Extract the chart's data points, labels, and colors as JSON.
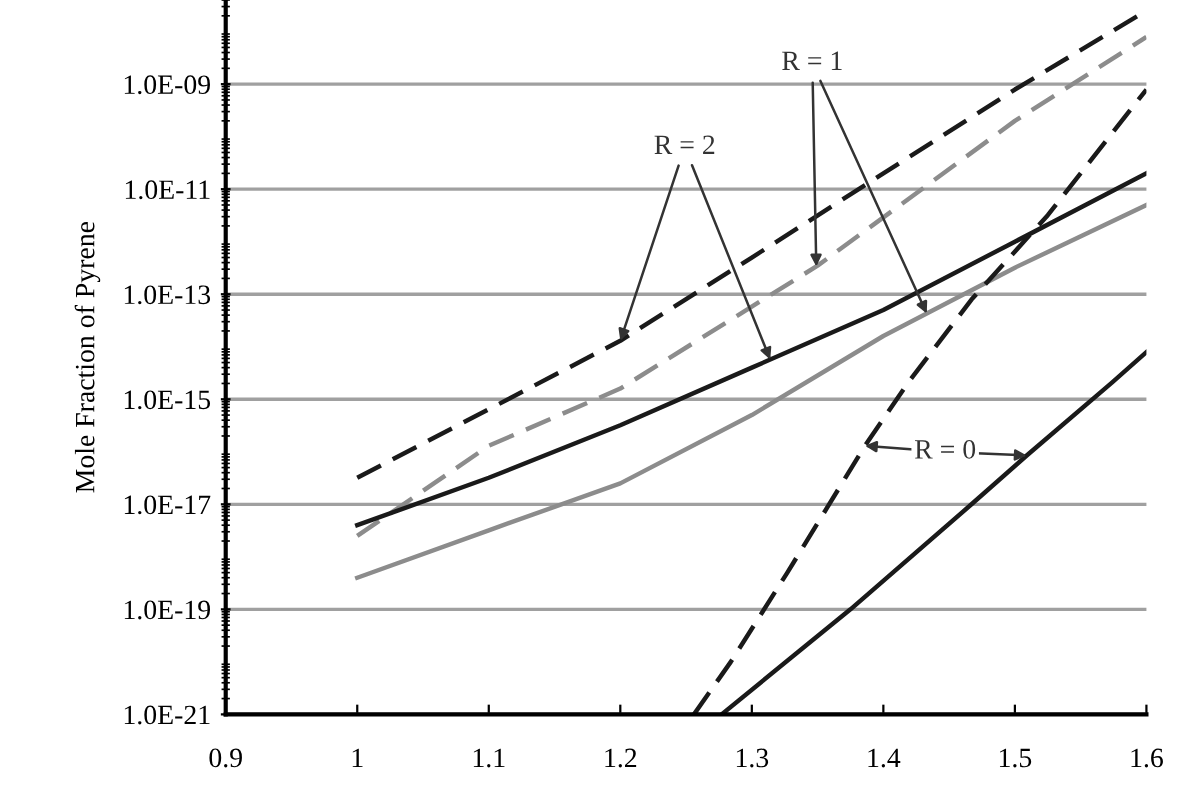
{
  "chart_data": {
    "type": "line",
    "ylabel": "Mole Fraction of Pyrene",
    "log": "y",
    "grid": "y",
    "xlim": [
      0.9,
      1.6
    ],
    "xticks": [
      0.9,
      1,
      1.1,
      1.2,
      1.3,
      1.4,
      1.5,
      1.6
    ],
    "ylim": [
      1e-21,
      4e-08
    ],
    "yticks": [
      {
        "value": 1e-21,
        "label": "1.0E-21"
      },
      {
        "value": 1e-19,
        "label": "1.0E-19"
      },
      {
        "value": 1e-17,
        "label": "1.0E-17"
      },
      {
        "value": 1e-15,
        "label": "1.0E-15"
      },
      {
        "value": 1e-13,
        "label": "1.0E-13"
      },
      {
        "value": 1e-11,
        "label": "1.0E-11"
      },
      {
        "value": 1e-09,
        "label": "1.0E-09"
      }
    ],
    "series": [
      {
        "color": "#1a1a1a",
        "line_style": "dashed",
        "x": [
          1,
          1.2,
          1.3,
          1.4,
          1.5,
          1.6
        ],
        "values": [
          3.2e-17,
          1.3e-14,
          5e-13,
          2e-11,
          7.9e-10,
          2.5e-08
        ]
      },
      {
        "color": "#8c8c8c",
        "line_style": "dashed",
        "x": [
          1,
          1.1,
          1.2,
          1.35,
          1.5,
          1.6
        ],
        "values": [
          2.5e-18,
          1.3e-16,
          1.6e-15,
          3.5e-13,
          2e-10,
          7.9e-09
        ]
      },
      {
        "color": "#1a1a1a",
        "line_style": "solid",
        "x": [
          1,
          1.1,
          1.2,
          1.3,
          1.4,
          1.5,
          1.6
        ],
        "values": [
          4e-18,
          3.2e-17,
          3.2e-16,
          4e-15,
          5e-14,
          1e-12,
          2e-11
        ]
      },
      {
        "color": "#8c8c8c",
        "line_style": "solid",
        "x": [
          1,
          1.1,
          1.2,
          1.3,
          1.4,
          1.5,
          1.6
        ],
        "values": [
          4e-19,
          3.2e-18,
          2.5e-17,
          5e-16,
          1.6e-14,
          3.2e-13,
          5e-12
        ]
      },
      {
        "color": "#1a1a1a",
        "line_style": "dashed",
        "x": [
          1.256,
          1.284,
          1.327,
          1.386,
          1.419,
          1.467,
          1.525,
          1.6
        ],
        "values": [
          1e-21,
          1e-20,
          5e-19,
          1.3e-16,
          2.1e-15,
          7.9e-14,
          3.2e-12,
          7.9e-10
        ]
      },
      {
        "color": "#1a1a1a",
        "line_style": "solid",
        "x": [
          1.277,
          1.375,
          1.467,
          1.509,
          1.574,
          1.6
        ],
        "values": [
          1e-21,
          1e-19,
          1e-17,
          8.5e-17,
          2.1e-15,
          7.9e-15
        ]
      }
    ],
    "annotations": [
      {
        "text": "R = 2",
        "x": 1.249,
        "y": 6.3e-11
      },
      {
        "text": "R = 1",
        "x": 1.346,
        "y": 2.5e-09
      },
      {
        "text": "R = 0",
        "x": 1.447,
        "y": 1e-16
      }
    ]
  }
}
